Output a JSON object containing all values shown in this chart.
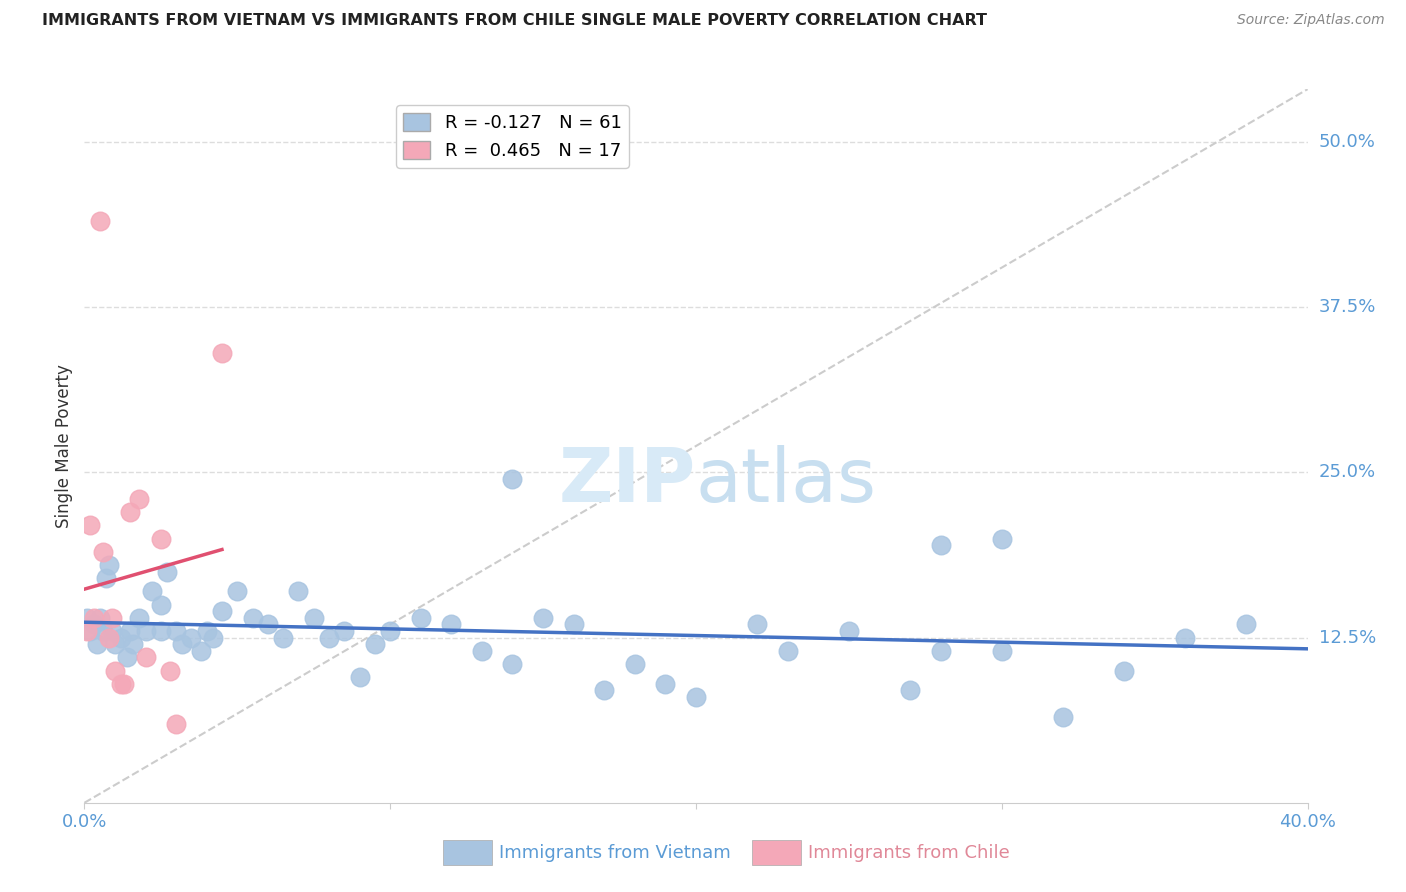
{
  "title": "IMMIGRANTS FROM VIETNAM VS IMMIGRANTS FROM CHILE SINGLE MALE POVERTY CORRELATION CHART",
  "source": "Source: ZipAtlas.com",
  "ylabel": "Single Male Poverty",
  "ytick_labels": [
    "12.5%",
    "25.0%",
    "37.5%",
    "50.0%"
  ],
  "ytick_values": [
    0.125,
    0.25,
    0.375,
    0.5
  ],
  "xlim": [
    0.0,
    0.4
  ],
  "ylim": [
    0.0,
    0.54
  ],
  "vietnam_color": "#a8c4e0",
  "chile_color": "#f4a8b8",
  "vietnam_line_color": "#4472c4",
  "chile_line_color": "#e05070",
  "background_color": "#ffffff",
  "title_color": "#222222",
  "axis_label_color": "#333333",
  "tick_label_color": "#5b9bd5",
  "grid_color": "#dddddd",
  "watermark_color": "#d8eaf7",
  "vietnam_x": [
    0.001,
    0.002,
    0.003,
    0.004,
    0.005,
    0.006,
    0.007,
    0.008,
    0.009,
    0.01,
    0.012,
    0.014,
    0.015,
    0.016,
    0.018,
    0.02,
    0.022,
    0.025,
    0.025,
    0.027,
    0.03,
    0.032,
    0.035,
    0.038,
    0.04,
    0.042,
    0.045,
    0.05,
    0.055,
    0.06,
    0.065,
    0.07,
    0.075,
    0.08,
    0.085,
    0.09,
    0.095,
    0.1,
    0.11,
    0.12,
    0.13,
    0.14,
    0.15,
    0.16,
    0.17,
    0.18,
    0.19,
    0.2,
    0.22,
    0.23,
    0.25,
    0.27,
    0.28,
    0.3,
    0.32,
    0.34,
    0.36,
    0.38,
    0.3,
    0.28,
    0.14
  ],
  "vietnam_y": [
    0.14,
    0.13,
    0.135,
    0.12,
    0.14,
    0.13,
    0.17,
    0.18,
    0.13,
    0.12,
    0.125,
    0.11,
    0.13,
    0.12,
    0.14,
    0.13,
    0.16,
    0.15,
    0.13,
    0.175,
    0.13,
    0.12,
    0.125,
    0.115,
    0.13,
    0.125,
    0.145,
    0.16,
    0.14,
    0.135,
    0.125,
    0.16,
    0.14,
    0.125,
    0.13,
    0.095,
    0.12,
    0.13,
    0.14,
    0.135,
    0.115,
    0.105,
    0.14,
    0.135,
    0.085,
    0.105,
    0.09,
    0.08,
    0.135,
    0.115,
    0.13,
    0.085,
    0.115,
    0.115,
    0.065,
    0.1,
    0.125,
    0.135,
    0.2,
    0.195,
    0.245
  ],
  "chile_x": [
    0.001,
    0.002,
    0.003,
    0.005,
    0.006,
    0.008,
    0.009,
    0.01,
    0.012,
    0.013,
    0.015,
    0.018,
    0.02,
    0.025,
    0.028,
    0.03,
    0.045
  ],
  "chile_y": [
    0.13,
    0.21,
    0.14,
    0.44,
    0.19,
    0.125,
    0.14,
    0.1,
    0.09,
    0.09,
    0.22,
    0.23,
    0.11,
    0.2,
    0.1,
    0.06,
    0.34
  ]
}
